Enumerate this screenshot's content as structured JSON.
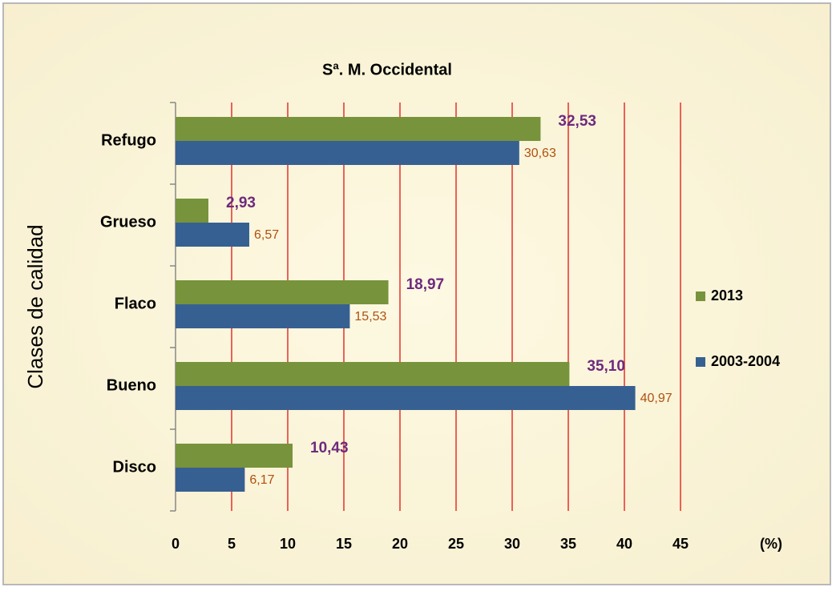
{
  "chart_data": {
    "type": "barh",
    "title": "Sª. M. Occidental",
    "ylabel": "Clases de calidad",
    "xlabel": "(%)",
    "categories": [
      "Refugo",
      "Grueso",
      "Flaco",
      "Bueno",
      "Disco"
    ],
    "series": [
      {
        "name": "2013",
        "color": "#77933c",
        "label_color": "#6e2a7e",
        "values": [
          32.53,
          2.93,
          18.97,
          35.1,
          10.43
        ],
        "value_labels": [
          "32,53",
          "2,93",
          "18,97",
          "35,10",
          "10,43"
        ]
      },
      {
        "name": "2003-2004",
        "color": "#376092",
        "label_color": "#b0500f",
        "values": [
          30.63,
          6.57,
          15.53,
          40.97,
          6.17
        ],
        "value_labels": [
          "30,63",
          "6,57",
          "15,53",
          "40,97",
          "6,17"
        ]
      }
    ],
    "xlim": [
      0,
      45
    ],
    "xticks": [
      0,
      5,
      10,
      15,
      20,
      25,
      30,
      35,
      40,
      45
    ],
    "grid": true,
    "grid_color": "#e00000",
    "legend": "right"
  }
}
